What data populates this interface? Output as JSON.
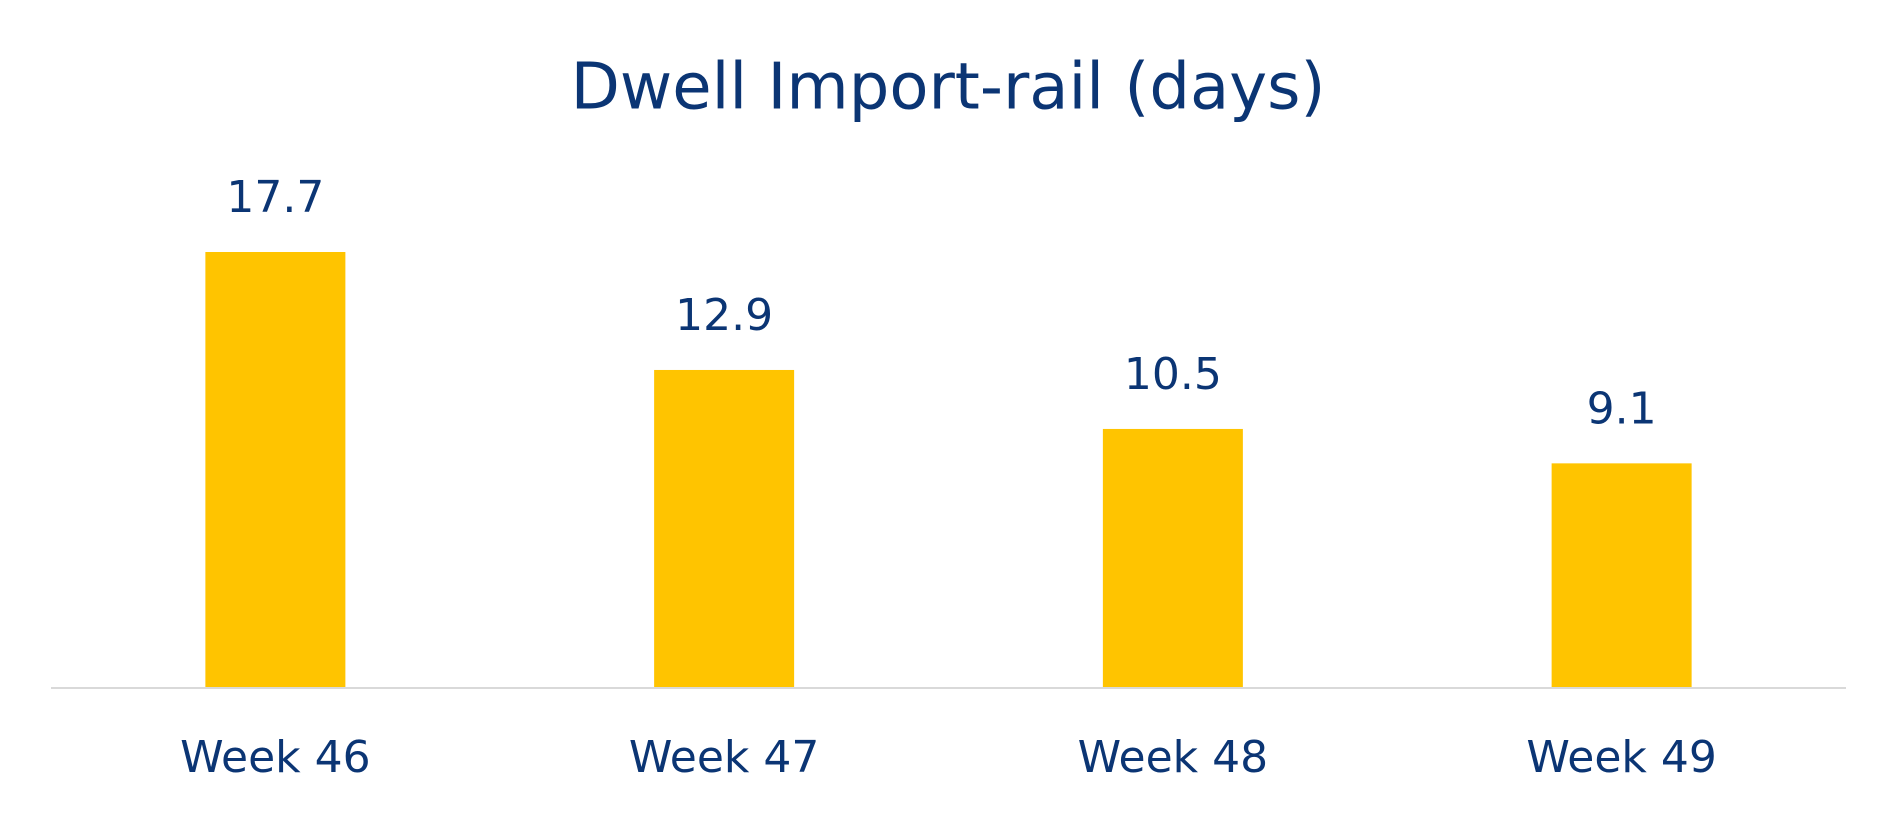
{
  "chart_data": {
    "type": "bar",
    "title": "Dwell Import-rail (days)",
    "categories": [
      "Week 46",
      "Week 47",
      "Week 48",
      "Week 49"
    ],
    "values": [
      17.7,
      12.9,
      10.5,
      9.1
    ],
    "color": "#ffc400"
  }
}
